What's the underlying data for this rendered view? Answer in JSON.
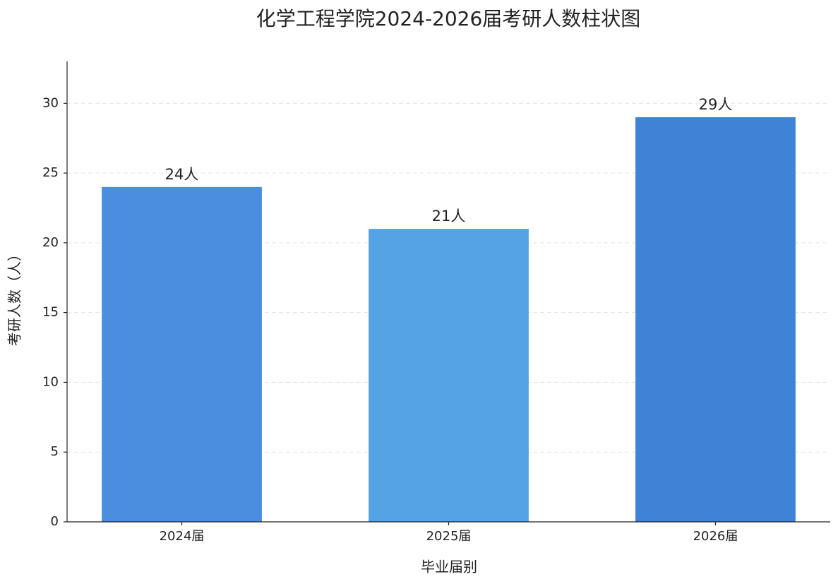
{
  "chart_data": {
    "type": "bar",
    "title": "化学工程学院2024-2026届考研人数柱状图",
    "x_label": "毕业届别",
    "y_label": "考研人数（人）",
    "categories": [
      "2024届",
      "2025届",
      "2026届"
    ],
    "values": [
      24,
      21,
      29
    ],
    "value_labels": [
      "24人",
      "21人",
      "29人"
    ],
    "colors": [
      "#4a8ee0",
      "#55a3e5",
      "#3e83d6"
    ],
    "ylim": [
      0,
      33
    ],
    "yticks": [
      0,
      5,
      10,
      15,
      20,
      25,
      30
    ],
    "grid": true
  }
}
